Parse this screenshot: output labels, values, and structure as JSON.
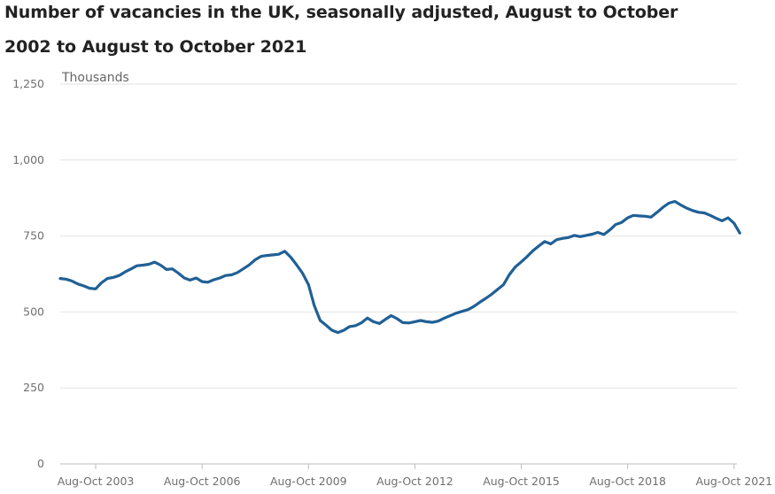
{
  "title_lines": [
    "Number of vacancies in the UK, seasonally adjusted, August to October",
    "2002 to August to October 2021"
  ],
  "colors": {
    "series": "#206095",
    "gridline": "#e2e2e2",
    "baseline": "#bdbdbd",
    "text": "#6f6f6f",
    "title": "#222222"
  },
  "chart_data": {
    "type": "line",
    "title": "Number of vacancies in the UK, seasonally adjusted, August to October 2002 to August to October 2021",
    "unit_label": "Thousands",
    "ylim": [
      0,
      1250
    ],
    "y_ticks": [
      0,
      250,
      500,
      750,
      "1,000",
      "1,250"
    ],
    "y_tick_values": [
      0,
      250,
      500,
      750,
      1000,
      1250
    ],
    "x_range": [
      2002.67,
      2021.75
    ],
    "x_ticks": [
      {
        "label": "Aug-Oct 2003",
        "x": 2003.67
      },
      {
        "label": "Aug-Oct 2006",
        "x": 2006.67
      },
      {
        "label": "Aug-Oct 2009",
        "x": 2009.67
      },
      {
        "label": "Aug-Oct 2012",
        "x": 2012.67
      },
      {
        "label": "Aug-Oct 2015",
        "x": 2015.67
      },
      {
        "label": "Aug-Oct 2018",
        "x": 2018.67
      },
      {
        "label": "Aug-Oct 2021",
        "x": 2021.67
      }
    ],
    "grid": true,
    "legend": "none",
    "series": [
      {
        "points": [
          [
            2002.67,
            610
          ],
          [
            2002.83,
            608
          ],
          [
            2003.0,
            602
          ],
          [
            2003.17,
            592
          ],
          [
            2003.33,
            586
          ],
          [
            2003.5,
            578
          ],
          [
            2003.67,
            576
          ],
          [
            2003.83,
            596
          ],
          [
            2004.0,
            610
          ],
          [
            2004.17,
            614
          ],
          [
            2004.33,
            620
          ],
          [
            2004.5,
            632
          ],
          [
            2004.67,
            642
          ],
          [
            2004.83,
            652
          ],
          [
            2005.0,
            654
          ],
          [
            2005.17,
            657
          ],
          [
            2005.33,
            664
          ],
          [
            2005.5,
            654
          ],
          [
            2005.67,
            640
          ],
          [
            2005.83,
            642
          ],
          [
            2006.0,
            628
          ],
          [
            2006.17,
            612
          ],
          [
            2006.33,
            605
          ],
          [
            2006.5,
            612
          ],
          [
            2006.67,
            600
          ],
          [
            2006.83,
            598
          ],
          [
            2007.0,
            606
          ],
          [
            2007.17,
            612
          ],
          [
            2007.33,
            620
          ],
          [
            2007.5,
            622
          ],
          [
            2007.67,
            630
          ],
          [
            2007.83,
            642
          ],
          [
            2008.0,
            655
          ],
          [
            2008.17,
            672
          ],
          [
            2008.33,
            683
          ],
          [
            2008.5,
            686
          ],
          [
            2008.67,
            688
          ],
          [
            2008.83,
            690
          ],
          [
            2009.0,
            700
          ],
          [
            2009.17,
            680
          ],
          [
            2009.33,
            656
          ],
          [
            2009.5,
            628
          ],
          [
            2009.67,
            590
          ],
          [
            2009.83,
            522
          ],
          [
            2010.0,
            472
          ],
          [
            2010.17,
            456
          ],
          [
            2010.33,
            440
          ],
          [
            2010.5,
            432
          ],
          [
            2010.67,
            440
          ],
          [
            2010.83,
            452
          ],
          [
            2011.0,
            455
          ],
          [
            2011.17,
            465
          ],
          [
            2011.33,
            480
          ],
          [
            2011.5,
            468
          ],
          [
            2011.67,
            462
          ],
          [
            2011.83,
            475
          ],
          [
            2012.0,
            488
          ],
          [
            2012.17,
            478
          ],
          [
            2012.33,
            465
          ],
          [
            2012.5,
            464
          ],
          [
            2012.67,
            468
          ],
          [
            2012.83,
            472
          ],
          [
            2013.0,
            468
          ],
          [
            2013.17,
            466
          ],
          [
            2013.33,
            470
          ],
          [
            2013.5,
            480
          ],
          [
            2013.67,
            488
          ],
          [
            2013.83,
            496
          ],
          [
            2014.0,
            502
          ],
          [
            2014.17,
            508
          ],
          [
            2014.33,
            518
          ],
          [
            2014.5,
            532
          ],
          [
            2014.67,
            545
          ],
          [
            2014.83,
            558
          ],
          [
            2015.0,
            574
          ],
          [
            2015.17,
            590
          ],
          [
            2015.33,
            622
          ],
          [
            2015.5,
            648
          ],
          [
            2015.67,
            665
          ],
          [
            2015.83,
            682
          ],
          [
            2016.0,
            702
          ],
          [
            2016.17,
            718
          ],
          [
            2016.33,
            732
          ],
          [
            2016.5,
            724
          ],
          [
            2016.67,
            738
          ],
          [
            2016.83,
            742
          ],
          [
            2017.0,
            745
          ],
          [
            2017.17,
            752
          ],
          [
            2017.33,
            748
          ],
          [
            2017.5,
            752
          ],
          [
            2017.67,
            756
          ],
          [
            2017.83,
            762
          ],
          [
            2018.0,
            755
          ],
          [
            2018.17,
            770
          ],
          [
            2018.33,
            788
          ],
          [
            2018.5,
            795
          ],
          [
            2018.67,
            810
          ],
          [
            2018.83,
            818
          ],
          [
            2019.0,
            816
          ],
          [
            2019.17,
            815
          ],
          [
            2019.33,
            812
          ],
          [
            2019.5,
            828
          ],
          [
            2019.67,
            845
          ],
          [
            2019.83,
            858
          ],
          [
            2020.0,
            864
          ],
          [
            2020.17,
            852
          ],
          [
            2020.33,
            842
          ],
          [
            2020.5,
            834
          ],
          [
            2020.67,
            828
          ],
          [
            2020.83,
            826
          ],
          [
            2021.0,
            818
          ],
          [
            2021.17,
            808
          ],
          [
            2021.33,
            800
          ],
          [
            2021.5,
            810
          ],
          [
            2021.67,
            792
          ],
          [
            2021.83,
            760
          ]
        ]
      }
    ]
  }
}
